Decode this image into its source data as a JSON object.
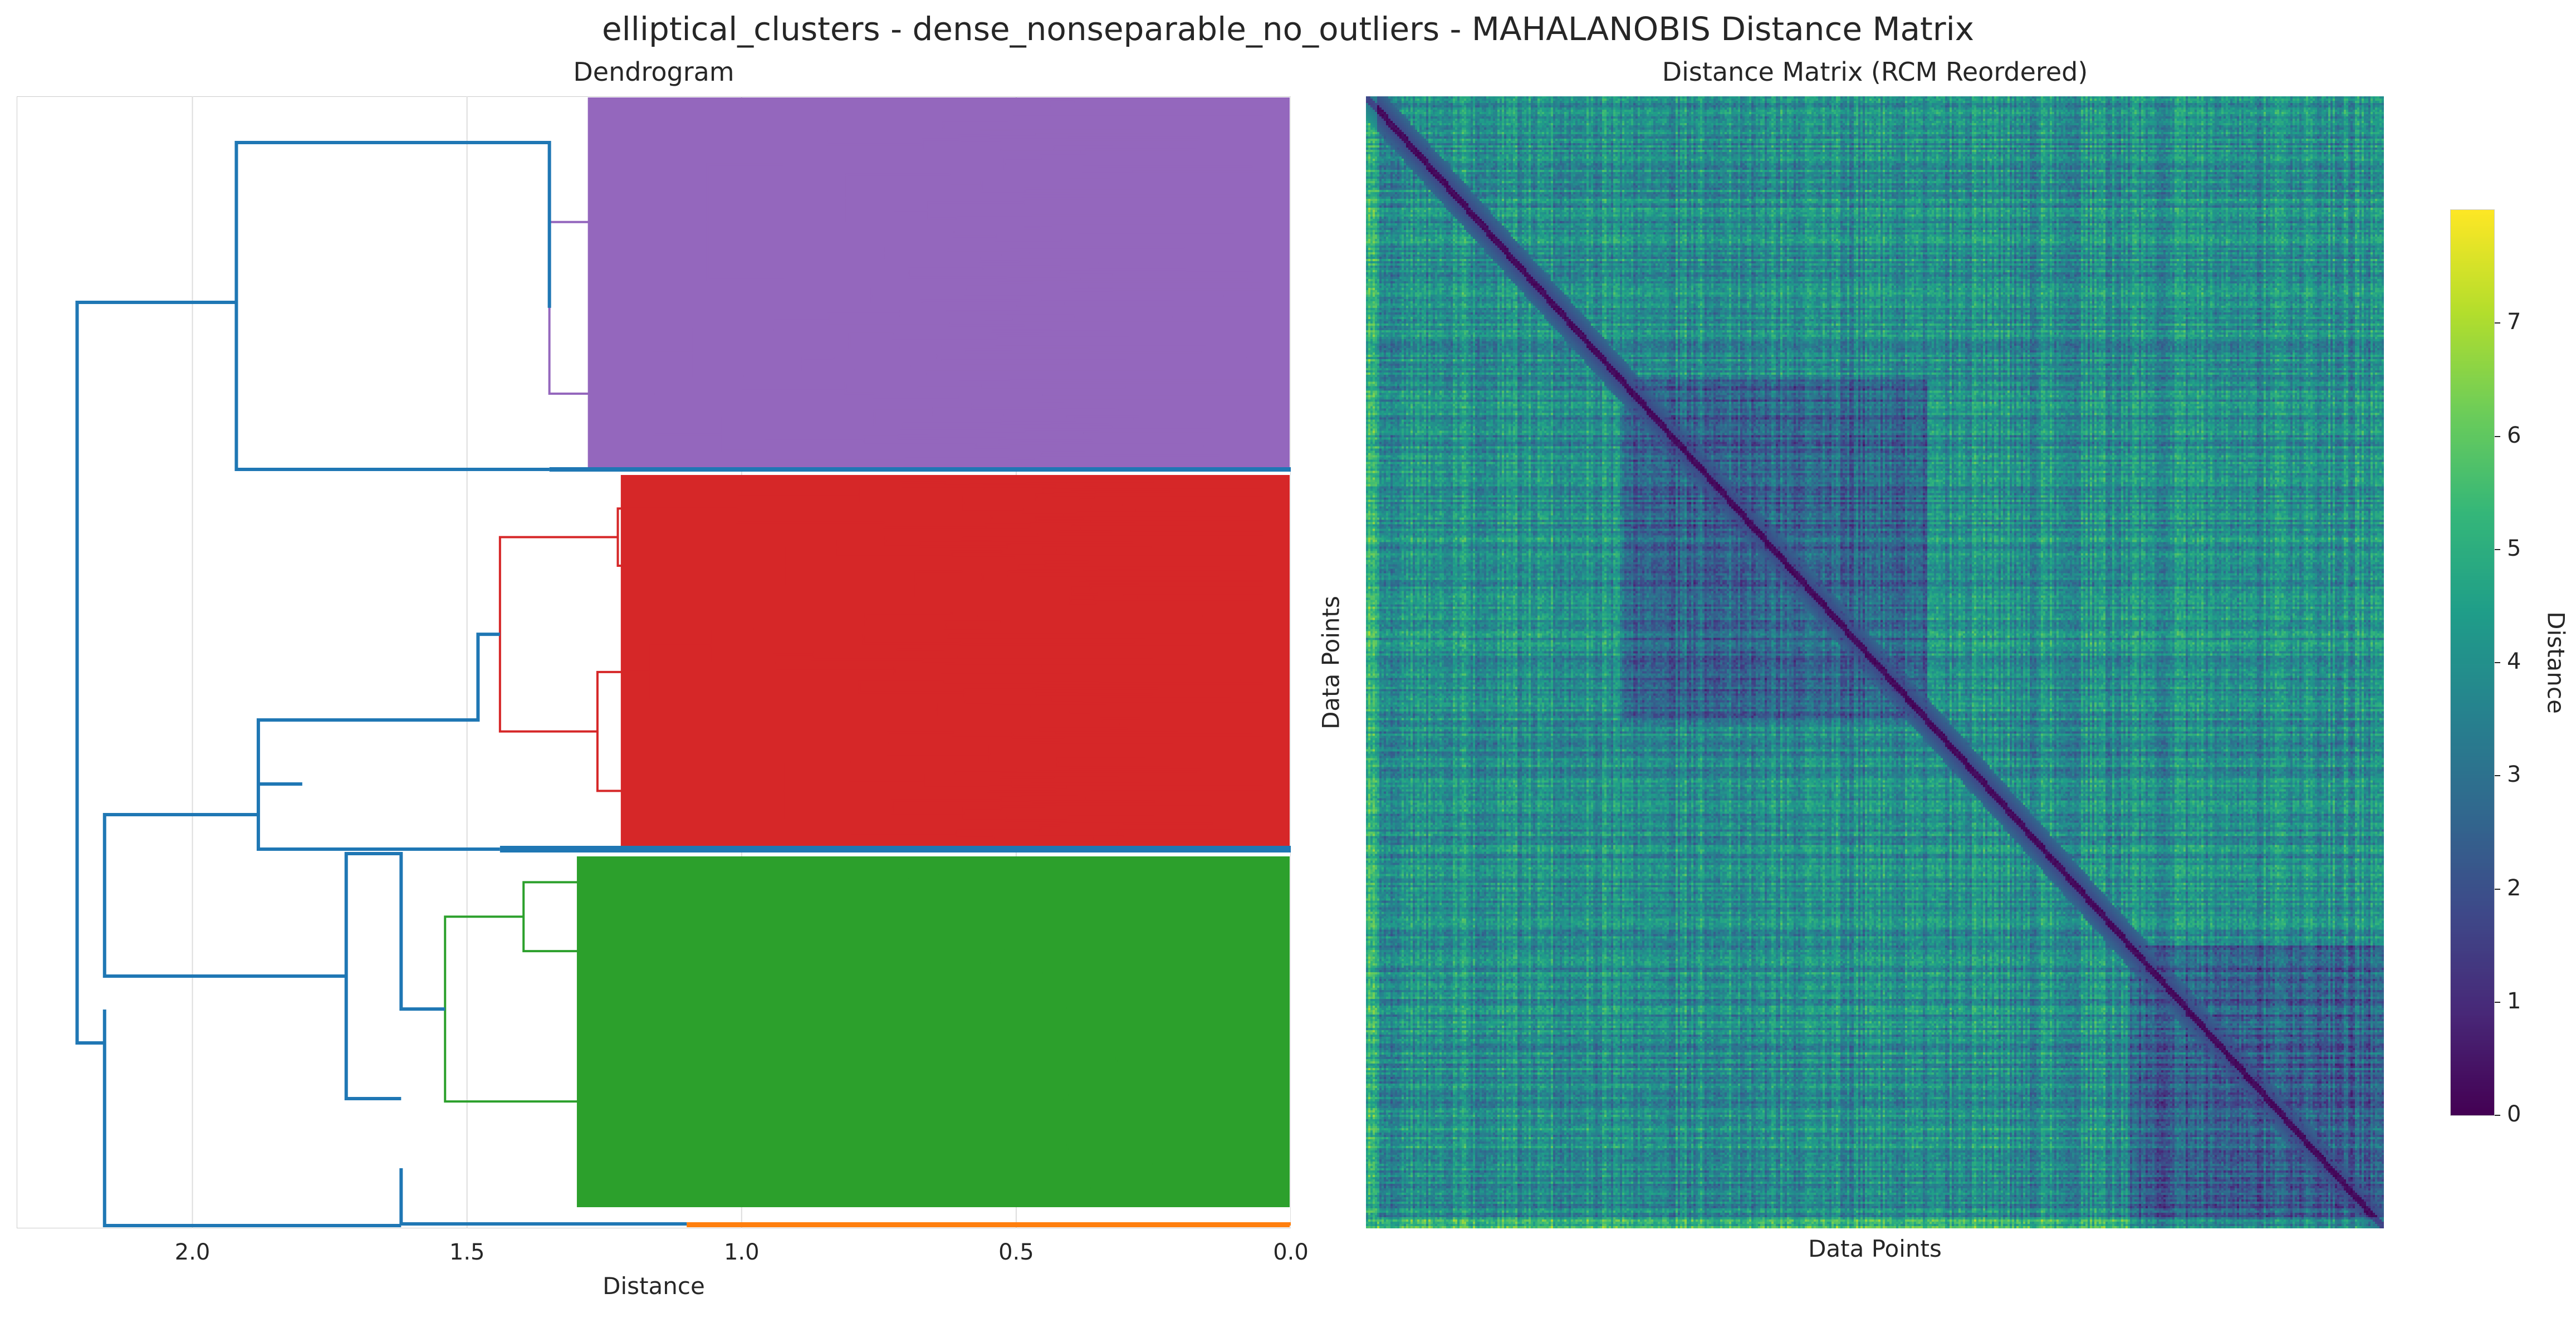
{
  "figure": {
    "title": "elliptical_clusters - dense_nonseparable_no_outliers - MAHALANOBIS Distance Matrix"
  },
  "chart_data": [
    {
      "type": "dendrogram",
      "title": "Dendrogram",
      "xlabel": "Distance",
      "ylabel": "",
      "xlim": [
        2.32,
        0.0
      ],
      "x_reversed": true,
      "xticks": [
        2.0,
        1.5,
        1.0,
        0.5,
        0.0
      ],
      "xtick_labels": [
        "2.0",
        "1.5",
        "1.0",
        "0.5",
        "0.0"
      ],
      "grid": true,
      "colors": {
        "link_above_threshold": "#1f77b4",
        "cluster_purple": "#9467bd",
        "cluster_red": "#d62728",
        "cluster_green": "#2ca02c",
        "cluster_orange": "#ff7f0e"
      },
      "top_merges": [
        {
          "distance": 2.21,
          "joins": [
            "upper group",
            "lower group"
          ]
        },
        {
          "distance": 1.92,
          "joins": [
            "purple cluster",
            "singleton branch"
          ]
        },
        {
          "distance": 2.16,
          "joins": [
            "red group",
            "green group"
          ]
        },
        {
          "distance": 1.88,
          "joins": [
            "red cluster",
            "blue link"
          ]
        },
        {
          "distance": 1.72,
          "joins": [
            "green cluster",
            "blue link"
          ]
        },
        {
          "distance": 1.62,
          "joins": [
            "green subtree",
            "orange leaf group"
          ]
        }
      ],
      "clusters": [
        {
          "color_name": "purple",
          "root_distance": 1.35,
          "min_leaf_distance": 0.1
        },
        {
          "color_name": "red",
          "root_distance": 1.44,
          "min_leaf_distance": 0.1
        },
        {
          "color_name": "green",
          "root_distance": 1.54,
          "min_leaf_distance": 0.1
        },
        {
          "color_name": "orange",
          "root_distance": 1.1,
          "min_leaf_distance": 0.0
        }
      ]
    },
    {
      "type": "heatmap",
      "title": "Distance Matrix (RCM Reordered)",
      "xlabel": "Data Points",
      "ylabel": "Data Points",
      "colormap": "viridis",
      "colorbar_label": "Distance",
      "vmin": 0.0,
      "vmax": 8.0,
      "colorbar_ticks": [
        0,
        1,
        2,
        3,
        4,
        5,
        6,
        7
      ],
      "colorbar_tick_labels": [
        "0",
        "1",
        "2",
        "3",
        "4",
        "5",
        "6",
        "7"
      ],
      "diagonal_value": 0.0,
      "typical_value": 4.0,
      "blocks": [
        {
          "range": [
            0.0,
            0.08
          ],
          "mean_distance": 3.8
        },
        {
          "range": [
            0.25,
            0.55
          ],
          "mean_distance": 2.6
        },
        {
          "range": [
            0.75,
            1.0
          ],
          "mean_distance": 2.5
        }
      ]
    }
  ]
}
